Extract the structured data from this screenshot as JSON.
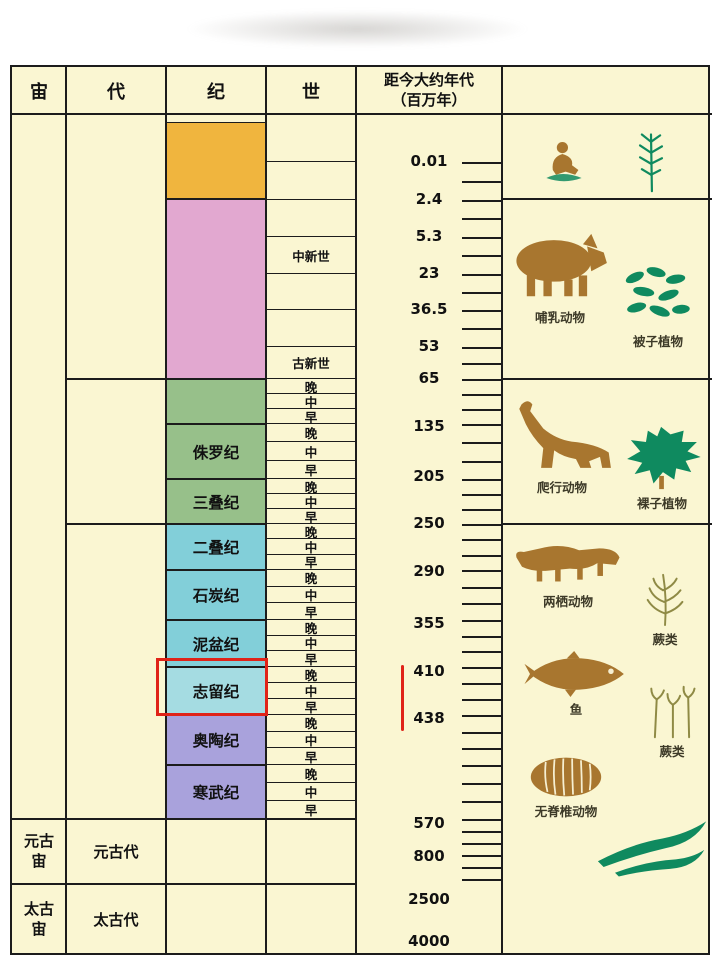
{
  "headers": {
    "eon": "宙",
    "era": "代",
    "period": "纪",
    "epoch": "世",
    "age_line1": "距今大约年代",
    "age_line2": "（百万年）"
  },
  "eons": [
    {
      "name": ""
    },
    {
      "name": "元古宙"
    },
    {
      "name": "太古宙"
    }
  ],
  "eras": [
    {
      "name": ""
    },
    {
      "name": ""
    },
    {
      "name": ""
    },
    {
      "name": "元古代"
    },
    {
      "name": "太古代"
    }
  ],
  "periods": [
    {
      "name": "",
      "color": "#f0b53e"
    },
    {
      "name": "",
      "color": "#e2a8d0"
    },
    {
      "name": "",
      "color": "#97c08a"
    },
    {
      "name": "侏罗纪",
      "color": "#97c08a"
    },
    {
      "name": "三叠纪",
      "color": "#97c08a"
    },
    {
      "name": "二叠纪",
      "color": "#82cfd9"
    },
    {
      "name": "石炭纪",
      "color": "#82cfd9"
    },
    {
      "name": "泥盆纪",
      "color": "#82cfd9"
    },
    {
      "name": "志留纪",
      "color": "#a5dce2"
    },
    {
      "name": "奥陶纪",
      "color": "#a9a2dc"
    },
    {
      "name": "寒武纪",
      "color": "#a9a2dc"
    }
  ],
  "epoch_labels": [
    "晚",
    "中",
    "早"
  ],
  "cenozoic_epochs": [
    "",
    "",
    "",
    "中新世",
    "",
    "",
    "古新世"
  ],
  "ages": [
    "0.01",
    "2.4",
    "5.3",
    "23",
    "36.5",
    "53",
    "65",
    "135",
    "205",
    "250",
    "290",
    "355",
    "410",
    "438",
    "570",
    "800",
    "2500",
    "4000"
  ],
  "life": [
    {
      "label": "",
      "icon": "hominid"
    },
    {
      "label": "",
      "icon": "plant-sprig"
    },
    {
      "label": "哺乳动物",
      "icon": "boar"
    },
    {
      "label": "被子植物",
      "icon": "angiosperm"
    },
    {
      "label": "爬行动物",
      "icon": "sauropod"
    },
    {
      "label": "裸子植物",
      "icon": "gymnosperm"
    },
    {
      "label": "两栖动物",
      "icon": "amphibian"
    },
    {
      "label": "蕨类",
      "icon": "fern"
    },
    {
      "label": "鱼",
      "icon": "fish"
    },
    {
      "label": "蕨类",
      "icon": "fern-stalks"
    },
    {
      "label": "无脊椎动物",
      "icon": "trilobite"
    },
    {
      "label": "",
      "icon": "algae"
    }
  ],
  "annotations": {
    "highlighted_period": "志留纪",
    "highlight_color": "#e02318"
  },
  "colors": {
    "table_background": "#faf6d2",
    "grid": "#1c1c1c",
    "animal_icon": "#a8762f",
    "plant_icon": "#0f8a5f",
    "fern_icon": "#8f8a45"
  }
}
